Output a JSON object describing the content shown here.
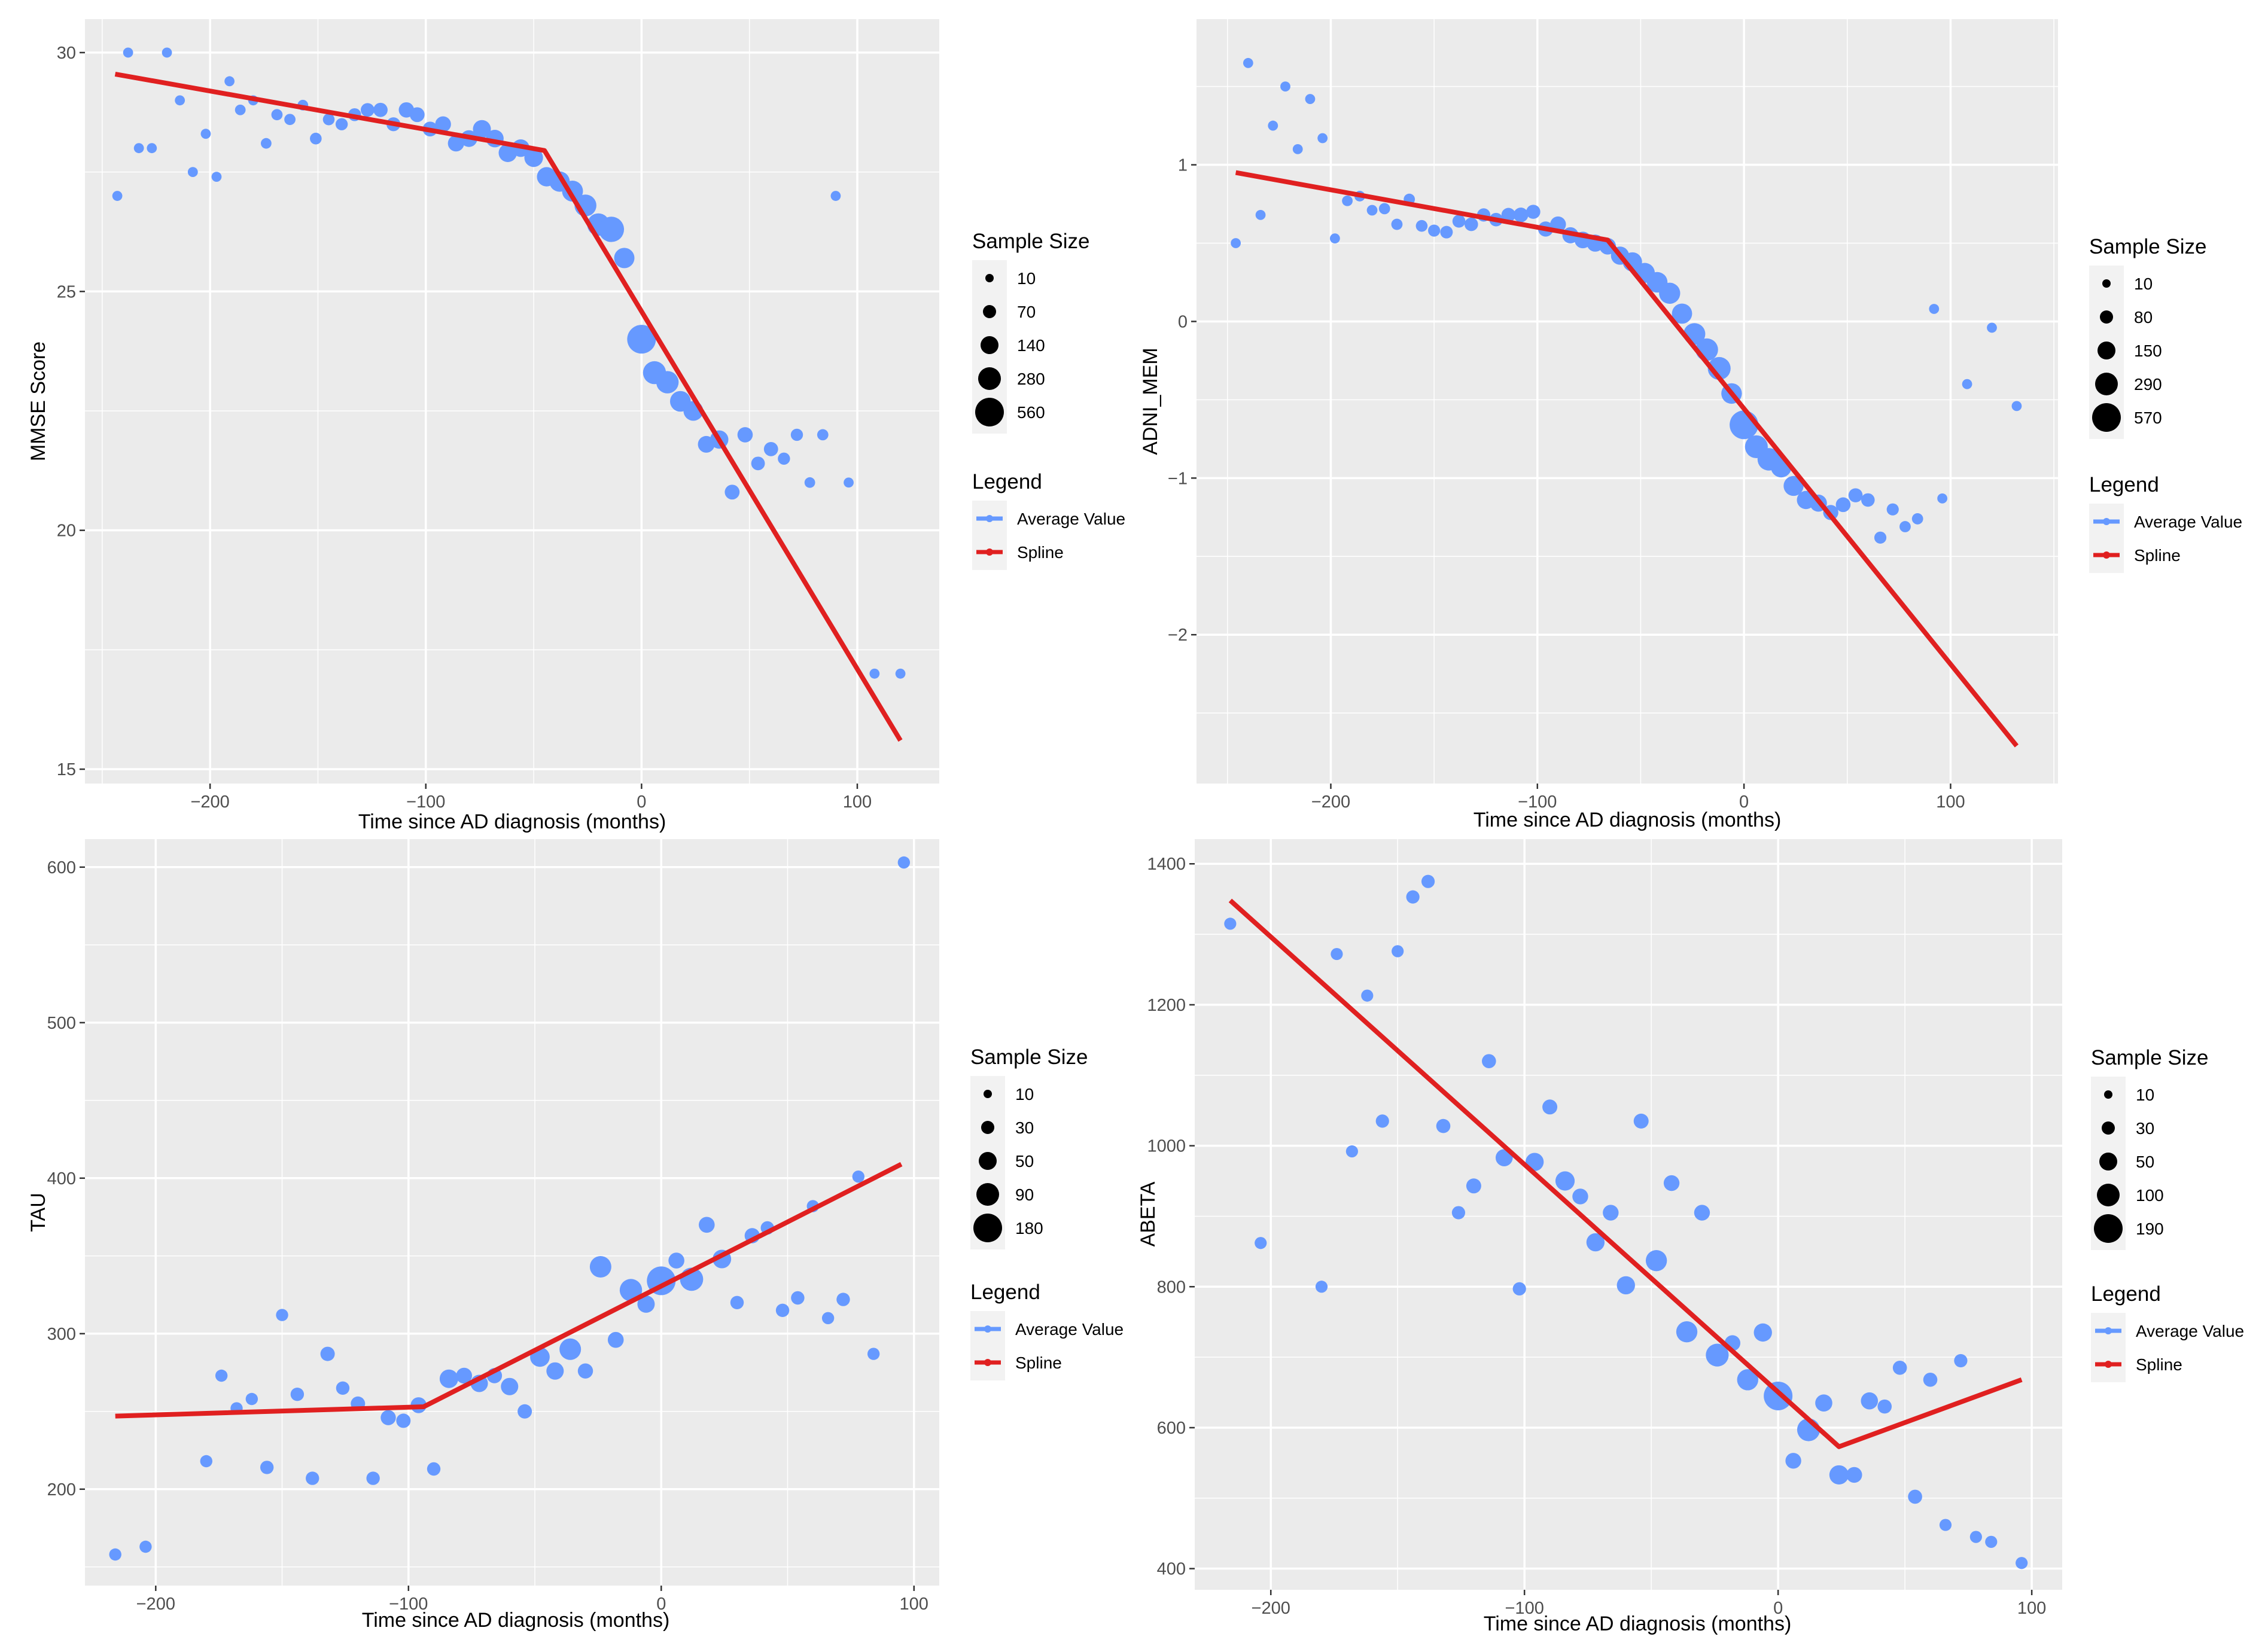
{
  "colors": {
    "panel_bg": "#EBEBEB",
    "grid": "#FFFFFF",
    "points": "#6699FF",
    "spline": "#E02020",
    "legend_key": "#000000"
  },
  "chart_data": [
    {
      "type": "scatter",
      "ylabel": "MMSE Score",
      "xlabel": "Time since AD diagnosis (months)",
      "xlim": [
        -258,
        138
      ],
      "ylim": [
        14.7,
        30.7
      ],
      "xticks": [
        -200,
        -100,
        0,
        100
      ],
      "xtick_labels": [
        "−200",
        "−100",
        "0",
        "100"
      ],
      "yticks": [
        15,
        20,
        25,
        30
      ],
      "ytick_labels": [
        "15",
        "20",
        "25",
        "30"
      ],
      "size_legend": {
        "title": "Sample Size",
        "labels": [
          "10",
          "70",
          "140",
          "280",
          "560"
        ]
      },
      "legend": {
        "title": "Legend",
        "entries": [
          "Average Value",
          "Spline"
        ]
      },
      "points": [
        [
          -243,
          27.0,
          10
        ],
        [
          -238,
          30.0,
          10
        ],
        [
          -233,
          28.0,
          10
        ],
        [
          -227,
          28.0,
          10
        ],
        [
          -220,
          30.0,
          10
        ],
        [
          -214,
          29.0,
          10
        ],
        [
          -208,
          27.5,
          10
        ],
        [
          -202,
          28.3,
          10
        ],
        [
          -197,
          27.4,
          10
        ],
        [
          -191,
          29.4,
          10
        ],
        [
          -186,
          28.8,
          15
        ],
        [
          -180,
          29.0,
          10
        ],
        [
          -174,
          28.1,
          15
        ],
        [
          -169,
          28.7,
          20
        ],
        [
          -163,
          28.6,
          20
        ],
        [
          -157,
          28.9,
          15
        ],
        [
          -151,
          28.2,
          25
        ],
        [
          -145,
          28.6,
          25
        ],
        [
          -139,
          28.5,
          30
        ],
        [
          -133,
          28.7,
          40
        ],
        [
          -127,
          28.8,
          50
        ],
        [
          -121,
          28.8,
          60
        ],
        [
          -115,
          28.5,
          55
        ],
        [
          -109,
          28.8,
          80
        ],
        [
          -104,
          28.7,
          70
        ],
        [
          -98,
          28.4,
          70
        ],
        [
          -92,
          28.5,
          90
        ],
        [
          -86,
          28.1,
          100
        ],
        [
          -80,
          28.2,
          110
        ],
        [
          -74,
          28.4,
          140
        ],
        [
          -68,
          28.2,
          130
        ],
        [
          -62,
          27.9,
          150
        ],
        [
          -56,
          28.0,
          130
        ],
        [
          -50,
          27.8,
          160
        ],
        [
          -44,
          27.4,
          180
        ],
        [
          -38,
          27.3,
          210
        ],
        [
          -32,
          27.1,
          230
        ],
        [
          -26,
          26.8,
          260
        ],
        [
          -20,
          26.4,
          280
        ],
        [
          -14,
          26.3,
          400
        ],
        [
          -8,
          25.7,
          210
        ],
        [
          0,
          24.0,
          560
        ],
        [
          6,
          23.3,
          300
        ],
        [
          12,
          23.1,
          280
        ],
        [
          18,
          22.7,
          220
        ],
        [
          24,
          22.5,
          190
        ],
        [
          30,
          21.8,
          110
        ],
        [
          36,
          21.9,
          150
        ],
        [
          42,
          20.8,
          70
        ],
        [
          48,
          22.0,
          80
        ],
        [
          54,
          21.4,
          50
        ],
        [
          60,
          21.7,
          60
        ],
        [
          66,
          21.5,
          30
        ],
        [
          72,
          22.0,
          30
        ],
        [
          78,
          21.0,
          15
        ],
        [
          84,
          22.0,
          20
        ],
        [
          90,
          27.0,
          10
        ],
        [
          96,
          21.0,
          10
        ],
        [
          108,
          17.0,
          10
        ],
        [
          120,
          17.0,
          10
        ]
      ],
      "spline": [
        [
          -244,
          29.55
        ],
        [
          -45,
          27.95
        ],
        [
          120,
          15.6
        ]
      ]
    },
    {
      "type": "scatter",
      "ylabel": "ADNI_MEM",
      "xlabel": "Time since AD diagnosis (months)",
      "xlim": [
        -265,
        152
      ],
      "ylim": [
        -2.95,
        1.93
      ],
      "xticks": [
        -200,
        -100,
        0,
        100
      ],
      "xtick_labels": [
        "−200",
        "−100",
        "0",
        "100"
      ],
      "yticks": [
        -2,
        -1,
        0,
        1
      ],
      "ytick_labels": [
        "−2",
        "−1",
        "0",
        "1"
      ],
      "size_legend": {
        "title": "Sample Size",
        "labels": [
          "10",
          "80",
          "150",
          "290",
          "570"
        ]
      },
      "legend": {
        "title": "Legend",
        "entries": [
          "Average Value",
          "Spline"
        ]
      },
      "points": [
        [
          -246,
          0.5,
          10
        ],
        [
          -240,
          1.65,
          10
        ],
        [
          -234,
          0.68,
          10
        ],
        [
          -228,
          1.25,
          10
        ],
        [
          -222,
          1.5,
          10
        ],
        [
          -216,
          1.1,
          10
        ],
        [
          -210,
          1.42,
          10
        ],
        [
          -204,
          1.17,
          10
        ],
        [
          -198,
          0.53,
          10
        ],
        [
          -192,
          0.77,
          15
        ],
        [
          -186,
          0.8,
          15
        ],
        [
          -180,
          0.71,
          15
        ],
        [
          -174,
          0.72,
          20
        ],
        [
          -168,
          0.62,
          20
        ],
        [
          -162,
          0.78,
          20
        ],
        [
          -156,
          0.61,
          25
        ],
        [
          -150,
          0.58,
          30
        ],
        [
          -144,
          0.57,
          35
        ],
        [
          -138,
          0.64,
          40
        ],
        [
          -132,
          0.62,
          50
        ],
        [
          -126,
          0.68,
          45
        ],
        [
          -120,
          0.65,
          50
        ],
        [
          -114,
          0.68,
          60
        ],
        [
          -108,
          0.68,
          70
        ],
        [
          -102,
          0.7,
          60
        ],
        [
          -96,
          0.59,
          80
        ],
        [
          -90,
          0.62,
          90
        ],
        [
          -84,
          0.55,
          100
        ],
        [
          -78,
          0.52,
          110
        ],
        [
          -72,
          0.5,
          120
        ],
        [
          -66,
          0.48,
          110
        ],
        [
          -60,
          0.42,
          150
        ],
        [
          -54,
          0.38,
          180
        ],
        [
          -48,
          0.31,
          200
        ],
        [
          -42,
          0.25,
          220
        ],
        [
          -36,
          0.18,
          240
        ],
        [
          -30,
          0.05,
          210
        ],
        [
          -24,
          -0.08,
          260
        ],
        [
          -18,
          -0.18,
          290
        ],
        [
          -12,
          -0.3,
          300
        ],
        [
          -6,
          -0.46,
          220
        ],
        [
          0,
          -0.66,
          570
        ],
        [
          6,
          -0.8,
          300
        ],
        [
          12,
          -0.88,
          290
        ],
        [
          18,
          -0.93,
          220
        ],
        [
          24,
          -1.05,
          200
        ],
        [
          30,
          -1.14,
          150
        ],
        [
          36,
          -1.16,
          120
        ],
        [
          42,
          -1.22,
          80
        ],
        [
          48,
          -1.17,
          70
        ],
        [
          54,
          -1.11,
          60
        ],
        [
          60,
          -1.14,
          50
        ],
        [
          66,
          -1.38,
          30
        ],
        [
          72,
          -1.2,
          30
        ],
        [
          78,
          -1.31,
          20
        ],
        [
          84,
          -1.26,
          20
        ],
        [
          92,
          0.08,
          10
        ],
        [
          96,
          -1.13,
          10
        ],
        [
          108,
          -0.4,
          10
        ],
        [
          120,
          -0.04,
          10
        ],
        [
          132,
          -0.54,
          10
        ]
      ],
      "spline": [
        [
          -246,
          0.95
        ],
        [
          -66,
          0.52
        ],
        [
          132,
          -2.71
        ]
      ]
    },
    {
      "type": "scatter",
      "ylabel": "TAU",
      "xlabel": "Time since AD diagnosis (months)",
      "xlim": [
        -228,
        110
      ],
      "ylim": [
        138,
        618
      ],
      "xticks": [
        -200,
        -100,
        0,
        100
      ],
      "xtick_labels": [
        "−200",
        "−100",
        "0",
        "100"
      ],
      "yticks": [
        200,
        300,
        400,
        500,
        600
      ],
      "ytick_labels": [
        "200",
        "300",
        "400",
        "500",
        "600"
      ],
      "size_legend": {
        "title": "Sample Size",
        "labels": [
          "10",
          "30",
          "50",
          "90",
          "180"
        ]
      },
      "legend": {
        "title": "Legend",
        "entries": [
          "Average Value",
          "Spline"
        ]
      },
      "points": [
        [
          -216,
          158,
          10
        ],
        [
          -204,
          163,
          10
        ],
        [
          -180,
          218,
          10
        ],
        [
          -174,
          273,
          10
        ],
        [
          -168,
          252,
          10
        ],
        [
          -162,
          258,
          10
        ],
        [
          -156,
          214,
          15
        ],
        [
          -150,
          312,
          10
        ],
        [
          -144,
          261,
          15
        ],
        [
          -138,
          207,
          15
        ],
        [
          -132,
          287,
          20
        ],
        [
          -126,
          265,
          15
        ],
        [
          -120,
          255,
          20
        ],
        [
          -114,
          207,
          15
        ],
        [
          -108,
          246,
          25
        ],
        [
          -102,
          244,
          20
        ],
        [
          -96,
          254,
          30
        ],
        [
          -90,
          213,
          15
        ],
        [
          -84,
          271,
          50
        ],
        [
          -78,
          273,
          30
        ],
        [
          -72,
          268,
          40
        ],
        [
          -66,
          273,
          25
        ],
        [
          -60,
          266,
          40
        ],
        [
          -54,
          250,
          20
        ],
        [
          -48,
          285,
          60
        ],
        [
          -42,
          276,
          40
        ],
        [
          -36,
          290,
          80
        ],
        [
          -30,
          276,
          25
        ],
        [
          -24,
          343,
          80
        ],
        [
          -18,
          296,
          30
        ],
        [
          -12,
          328,
          90
        ],
        [
          -6,
          319,
          40
        ],
        [
          0,
          334,
          180
        ],
        [
          6,
          347,
          30
        ],
        [
          12,
          335,
          100
        ],
        [
          18,
          370,
          30
        ],
        [
          24,
          348,
          50
        ],
        [
          30,
          320,
          15
        ],
        [
          36,
          363,
          25
        ],
        [
          42,
          368,
          15
        ],
        [
          48,
          315,
          15
        ],
        [
          54,
          323,
          15
        ],
        [
          60,
          382,
          10
        ],
        [
          66,
          310,
          10
        ],
        [
          72,
          322,
          15
        ],
        [
          78,
          401,
          10
        ],
        [
          84,
          287,
          10
        ],
        [
          96,
          603,
          10
        ]
      ],
      "spline": [
        [
          -216,
          247
        ],
        [
          -94,
          253
        ],
        [
          95,
          409
        ]
      ]
    },
    {
      "type": "scatter",
      "ylabel": "ABETA",
      "xlabel": "Time since AD diagnosis (months)",
      "xlim": [
        -230,
        112
      ],
      "ylim": [
        370,
        1435
      ],
      "xticks": [
        -200,
        -100,
        0,
        100
      ],
      "xtick_labels": [
        "−200",
        "−100",
        "0",
        "100"
      ],
      "yticks": [
        400,
        600,
        800,
        1000,
        1200,
        1400
      ],
      "ytick_labels": [
        "400",
        "600",
        "800",
        "1000",
        "1200",
        "1400"
      ],
      "size_legend": {
        "title": "Sample Size",
        "labels": [
          "10",
          "30",
          "50",
          "100",
          "190"
        ]
      },
      "legend": {
        "title": "Legend",
        "entries": [
          "Average Value",
          "Spline"
        ]
      },
      "points": [
        [
          -216,
          1315,
          10
        ],
        [
          -204,
          862,
          10
        ],
        [
          -180,
          800,
          10
        ],
        [
          -174,
          1272,
          10
        ],
        [
          -168,
          992,
          10
        ],
        [
          -162,
          1213,
          10
        ],
        [
          -156,
          1035,
          15
        ],
        [
          -150,
          1276,
          10
        ],
        [
          -144,
          1353,
          15
        ],
        [
          -138,
          1375,
          15
        ],
        [
          -132,
          1028,
          20
        ],
        [
          -126,
          905,
          15
        ],
        [
          -120,
          943,
          25
        ],
        [
          -114,
          1120,
          20
        ],
        [
          -108,
          983,
          40
        ],
        [
          -102,
          797,
          15
        ],
        [
          -96,
          977,
          50
        ],
        [
          -90,
          1055,
          25
        ],
        [
          -84,
          950,
          60
        ],
        [
          -78,
          928,
          30
        ],
        [
          -72,
          863,
          50
        ],
        [
          -66,
          905,
          30
        ],
        [
          -60,
          802,
          50
        ],
        [
          -54,
          1035,
          25
        ],
        [
          -48,
          837,
          80
        ],
        [
          -42,
          947,
          30
        ],
        [
          -36,
          736,
          80
        ],
        [
          -30,
          905,
          30
        ],
        [
          -24,
          703,
          100
        ],
        [
          -18,
          720,
          30
        ],
        [
          -12,
          668,
          80
        ],
        [
          -6,
          735,
          50
        ],
        [
          0,
          645,
          190
        ],
        [
          6,
          553,
          30
        ],
        [
          12,
          597,
          100
        ],
        [
          18,
          635,
          40
        ],
        [
          24,
          533,
          60
        ],
        [
          30,
          533,
          30
        ],
        [
          36,
          638,
          40
        ],
        [
          42,
          630,
          20
        ],
        [
          48,
          685,
          20
        ],
        [
          54,
          502,
          20
        ],
        [
          60,
          668,
          20
        ],
        [
          66,
          462,
          10
        ],
        [
          72,
          695,
          15
        ],
        [
          78,
          445,
          10
        ],
        [
          84,
          438,
          10
        ],
        [
          96,
          408,
          10
        ]
      ],
      "spline": [
        [
          -216,
          1348
        ],
        [
          24,
          573
        ],
        [
          96,
          668
        ]
      ]
    }
  ]
}
